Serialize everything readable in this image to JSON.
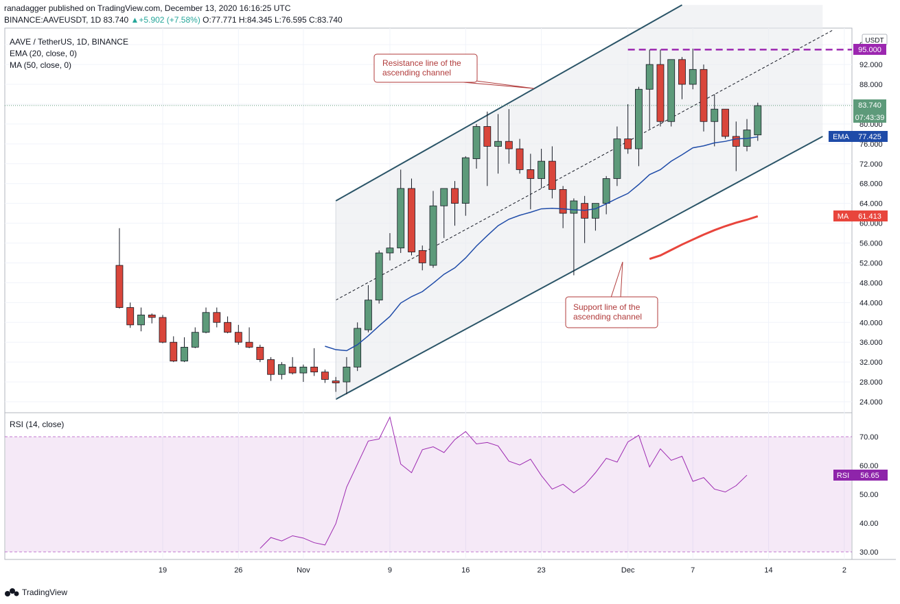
{
  "header": {
    "published": "ranadagger published on TradingView.com, December 13, 2020 16:16:25 UTC",
    "symbol": "BINANCE:AAVEUSDT, 1D",
    "last": "83.740",
    "change": "▲+5.902 (+7.58%)",
    "ohlc_o": "O:77.771",
    "ohlc_h": "H:84.345",
    "ohlc_l": "L:76.595",
    "ohlc_c": "C:83.740"
  },
  "legend": {
    "title": "AAVE / TetherUS, 1D, BINANCE",
    "ema": "EMA (20, close, 0)",
    "ma": "MA (50, close, 0)",
    "rsi": "RSI (14, close)"
  },
  "annotations": {
    "resistance_1": "Resistance line of the",
    "resistance_2": "ascending channel",
    "support_1": "Support line of the",
    "support_2": "ascending channel"
  },
  "badges": {
    "currency": "USDT",
    "target": "95.000",
    "last_price": "83.740",
    "countdown": "07:43:39",
    "ema_label": "EMA",
    "ema_value": "77.425",
    "ma_label": "MA",
    "ma_value": "61.413",
    "rsi_label": "RSI",
    "rsi_value": "56.65"
  },
  "footer": {
    "brand": "TradingView"
  },
  "colors": {
    "up": "#26a69a",
    "down": "#ef5350",
    "up_fill": "#5d9a7a",
    "down_fill": "#d9463b",
    "ema": "#1e4ba8",
    "ma": "#e8453c",
    "rsi": "#9c27b0",
    "target": "#9c27b0",
    "channel": "#2a5467"
  },
  "chart_data": [
    {
      "type": "candlestick",
      "title": "AAVE / TetherUS, 1D, BINANCE",
      "ylim": [
        22,
        100
      ],
      "yticks": [
        "24.000",
        "28.000",
        "32.000",
        "36.000",
        "40.000",
        "44.000",
        "48.000",
        "52.000",
        "56.000",
        "60.000",
        "64.000",
        "68.000",
        "72.000",
        "76.000",
        "80.000",
        "84.000",
        "88.000",
        "92.000",
        "96.000"
      ],
      "xticks": [
        {
          "day": 19,
          "label": "19"
        },
        {
          "day": 26,
          "label": "26"
        },
        {
          "day": 32,
          "label": "Nov"
        },
        {
          "day": 40,
          "label": "9"
        },
        {
          "day": 47,
          "label": "16"
        },
        {
          "day": 54,
          "label": "23"
        },
        {
          "day": 62,
          "label": "Dec"
        },
        {
          "day": 68,
          "label": "7"
        },
        {
          "day": 75,
          "label": "14"
        },
        {
          "day": 82,
          "label": "2"
        }
      ],
      "candles": [
        {
          "day": 15,
          "o": 51.5,
          "h": 59.0,
          "l": 42.8,
          "c": 43.0
        },
        {
          "day": 16,
          "o": 43.0,
          "h": 44.0,
          "l": 38.9,
          "c": 39.5
        },
        {
          "day": 17,
          "o": 39.5,
          "h": 43.0,
          "l": 38.2,
          "c": 41.5
        },
        {
          "day": 18,
          "o": 41.5,
          "h": 41.8,
          "l": 39.8,
          "c": 41.0
        },
        {
          "day": 19,
          "o": 41.0,
          "h": 41.5,
          "l": 35.8,
          "c": 36.0
        },
        {
          "day": 20,
          "o": 36.0,
          "h": 37.2,
          "l": 32.0,
          "c": 32.2
        },
        {
          "day": 21,
          "o": 32.2,
          "h": 37.0,
          "l": 32.0,
          "c": 35.0
        },
        {
          "day": 22,
          "o": 35.0,
          "h": 39.0,
          "l": 34.8,
          "c": 38.0
        },
        {
          "day": 23,
          "o": 38.0,
          "h": 43.0,
          "l": 37.8,
          "c": 42.0
        },
        {
          "day": 24,
          "o": 42.0,
          "h": 43.0,
          "l": 39.0,
          "c": 40.0
        },
        {
          "day": 25,
          "o": 40.0,
          "h": 41.2,
          "l": 37.8,
          "c": 38.0
        },
        {
          "day": 26,
          "o": 38.0,
          "h": 39.5,
          "l": 35.5,
          "c": 36.0
        },
        {
          "day": 27,
          "o": 36.0,
          "h": 39.0,
          "l": 34.8,
          "c": 35.0
        },
        {
          "day": 28,
          "o": 35.0,
          "h": 35.5,
          "l": 32.0,
          "c": 32.5
        },
        {
          "day": 29,
          "o": 32.5,
          "h": 33.0,
          "l": 28.2,
          "c": 29.5
        },
        {
          "day": 30,
          "o": 29.5,
          "h": 32.0,
          "l": 28.5,
          "c": 31.5
        },
        {
          "day": 31,
          "o": 31.0,
          "h": 33.0,
          "l": 29.5,
          "c": 29.8
        },
        {
          "day": 32,
          "o": 29.8,
          "h": 31.5,
          "l": 28.0,
          "c": 31.0
        },
        {
          "day": 33,
          "o": 31.0,
          "h": 34.8,
          "l": 29.2,
          "c": 30.0
        },
        {
          "day": 34,
          "o": 30.0,
          "h": 30.5,
          "l": 27.8,
          "c": 28.5
        },
        {
          "day": 35,
          "o": 28.2,
          "h": 29.0,
          "l": 26.0,
          "c": 27.8
        },
        {
          "day": 36,
          "o": 28.0,
          "h": 33.0,
          "l": 25.5,
          "c": 31.0
        },
        {
          "day": 37,
          "o": 31.0,
          "h": 40.0,
          "l": 30.2,
          "c": 38.8
        },
        {
          "day": 38,
          "o": 38.5,
          "h": 47.5,
          "l": 38.0,
          "c": 44.5
        },
        {
          "day": 39,
          "o": 44.5,
          "h": 54.5,
          "l": 43.8,
          "c": 54.0
        },
        {
          "day": 40,
          "o": 54.0,
          "h": 58.0,
          "l": 52.5,
          "c": 55.0
        },
        {
          "day": 41,
          "o": 55.0,
          "h": 70.8,
          "l": 54.0,
          "c": 67.0
        },
        {
          "day": 42,
          "o": 67.0,
          "h": 69.0,
          "l": 53.5,
          "c": 54.2
        },
        {
          "day": 43,
          "o": 54.5,
          "h": 55.5,
          "l": 50.5,
          "c": 52.0
        },
        {
          "day": 44,
          "o": 51.5,
          "h": 66.5,
          "l": 51.0,
          "c": 63.5
        },
        {
          "day": 45,
          "o": 63.5,
          "h": 67.0,
          "l": 57.0,
          "c": 67.0
        },
        {
          "day": 46,
          "o": 67.0,
          "h": 68.5,
          "l": 59.5,
          "c": 64.0
        },
        {
          "day": 47,
          "o": 64.0,
          "h": 73.5,
          "l": 61.5,
          "c": 73.2
        },
        {
          "day": 48,
          "o": 73.0,
          "h": 80.0,
          "l": 71.0,
          "c": 79.5
        },
        {
          "day": 49,
          "o": 79.5,
          "h": 82.5,
          "l": 67.5,
          "c": 75.5
        },
        {
          "day": 50,
          "o": 75.5,
          "h": 82.0,
          "l": 70.0,
          "c": 76.5
        },
        {
          "day": 51,
          "o": 76.5,
          "h": 83.0,
          "l": 72.0,
          "c": 75.0
        },
        {
          "day": 52,
          "o": 75.0,
          "h": 77.0,
          "l": 70.0,
          "c": 70.8
        },
        {
          "day": 53,
          "o": 70.8,
          "h": 74.0,
          "l": 62.8,
          "c": 69.0
        },
        {
          "day": 54,
          "o": 69.0,
          "h": 75.0,
          "l": 67.0,
          "c": 72.5
        },
        {
          "day": 55,
          "o": 72.5,
          "h": 75.5,
          "l": 65.0,
          "c": 66.8
        },
        {
          "day": 56,
          "o": 66.8,
          "h": 67.5,
          "l": 59.0,
          "c": 62.0
        },
        {
          "day": 57,
          "o": 62.0,
          "h": 65.0,
          "l": 49.5,
          "c": 64.5
        },
        {
          "day": 58,
          "o": 64.0,
          "h": 65.5,
          "l": 56.0,
          "c": 61.0
        },
        {
          "day": 59,
          "o": 61.0,
          "h": 64.0,
          "l": 58.5,
          "c": 64.0
        },
        {
          "day": 60,
          "o": 64.0,
          "h": 69.5,
          "l": 61.8,
          "c": 69.0
        },
        {
          "day": 61,
          "o": 69.0,
          "h": 79.5,
          "l": 67.5,
          "c": 77.0
        },
        {
          "day": 62,
          "o": 77.0,
          "h": 84.0,
          "l": 74.0,
          "c": 75.0
        },
        {
          "day": 63,
          "o": 75.0,
          "h": 87.5,
          "l": 71.5,
          "c": 87.0
        },
        {
          "day": 64,
          "o": 87.0,
          "h": 95.0,
          "l": 79.0,
          "c": 92.0
        },
        {
          "day": 65,
          "o": 92.0,
          "h": 95.0,
          "l": 79.5,
          "c": 80.5
        },
        {
          "day": 66,
          "o": 80.5,
          "h": 93.0,
          "l": 79.5,
          "c": 93.0
        },
        {
          "day": 67,
          "o": 93.0,
          "h": 93.5,
          "l": 85.0,
          "c": 88.0
        },
        {
          "day": 68,
          "o": 88.0,
          "h": 95.2,
          "l": 87.0,
          "c": 91.0
        },
        {
          "day": 69,
          "o": 91.0,
          "h": 92.0,
          "l": 78.5,
          "c": 80.5
        },
        {
          "day": 70,
          "o": 80.5,
          "h": 86.0,
          "l": 75.5,
          "c": 83.0
        },
        {
          "day": 71,
          "o": 83.0,
          "h": 83.0,
          "l": 77.0,
          "c": 77.5
        },
        {
          "day": 72,
          "o": 77.5,
          "h": 80.5,
          "l": 70.5,
          "c": 75.5
        },
        {
          "day": 73,
          "o": 75.5,
          "h": 81.0,
          "l": 74.5,
          "c": 78.8
        },
        {
          "day": 74,
          "o": 77.8,
          "h": 84.3,
          "l": 76.6,
          "c": 83.7
        }
      ],
      "ema20": [
        [
          34,
          35.2
        ],
        [
          35,
          34.5
        ],
        [
          36,
          34.3
        ],
        [
          37,
          35.5
        ],
        [
          38,
          37.3
        ],
        [
          39,
          39.3
        ],
        [
          40,
          41.2
        ],
        [
          41,
          43.9
        ],
        [
          42,
          45.2
        ],
        [
          43,
          46.2
        ],
        [
          44,
          47.9
        ],
        [
          45,
          49.7
        ],
        [
          46,
          51.0
        ],
        [
          47,
          53.0
        ],
        [
          48,
          55.4
        ],
        [
          49,
          57.5
        ],
        [
          50,
          59.5
        ],
        [
          51,
          60.8
        ],
        [
          52,
          61.6
        ],
        [
          53,
          62.2
        ],
        [
          54,
          62.9
        ],
        [
          55,
          63.0
        ],
        [
          56,
          62.9
        ],
        [
          57,
          62.7
        ],
        [
          58,
          62.6
        ],
        [
          59,
          62.9
        ],
        [
          60,
          63.9
        ],
        [
          61,
          65.0
        ],
        [
          62,
          66.0
        ],
        [
          63,
          67.8
        ],
        [
          64,
          69.8
        ],
        [
          65,
          70.8
        ],
        [
          66,
          72.5
        ],
        [
          67,
          73.8
        ],
        [
          68,
          75.2
        ],
        [
          69,
          75.6
        ],
        [
          70,
          76.2
        ],
        [
          71,
          76.5
        ],
        [
          72,
          77.0
        ],
        [
          73,
          77.1
        ],
        [
          74,
          77.4
        ]
      ],
      "ma50": [
        [
          64,
          52.8
        ],
        [
          65,
          53.5
        ],
        [
          66,
          54.6
        ],
        [
          67,
          55.7
        ],
        [
          68,
          56.7
        ],
        [
          69,
          57.7
        ],
        [
          70,
          58.6
        ],
        [
          71,
          59.4
        ],
        [
          72,
          60.1
        ],
        [
          73,
          60.7
        ],
        [
          74,
          61.4
        ]
      ],
      "channel": {
        "upper": [
          [
            35,
            64.5
          ],
          [
            67,
            104.0
          ]
        ],
        "lower": [
          [
            35,
            24.5
          ],
          [
            80,
            77.5
          ]
        ],
        "mid": [
          [
            35,
            44.5
          ],
          [
            81,
            99.0
          ]
        ]
      },
      "target_line": 95.0,
      "last_price": 83.74
    },
    {
      "type": "line",
      "title": "RSI (14, close)",
      "ylim": [
        28,
        76
      ],
      "yticks": [
        "30.00",
        "40.00",
        "50.00",
        "60.00",
        "70.00"
      ],
      "band": [
        30,
        70
      ],
      "values": [
        [
          28,
          31.2
        ],
        [
          29,
          35.0
        ],
        [
          30,
          33.8
        ],
        [
          31,
          35.6
        ],
        [
          32,
          34.8
        ],
        [
          33,
          33.2
        ],
        [
          34,
          32.4
        ],
        [
          35,
          39.8
        ],
        [
          36,
          52.5
        ],
        [
          37,
          60.5
        ],
        [
          38,
          68.5
        ],
        [
          39,
          69.2
        ],
        [
          40,
          76.8
        ],
        [
          41,
          60.5
        ],
        [
          42,
          57.5
        ],
        [
          43,
          65.5
        ],
        [
          44,
          66.5
        ],
        [
          45,
          64.5
        ],
        [
          46,
          69.0
        ],
        [
          47,
          71.8
        ],
        [
          48,
          67.5
        ],
        [
          49,
          68.0
        ],
        [
          50,
          66.8
        ],
        [
          51,
          61.5
        ],
        [
          52,
          60.2
        ],
        [
          53,
          62.2
        ],
        [
          54,
          56.5
        ],
        [
          55,
          51.8
        ],
        [
          56,
          53.5
        ],
        [
          57,
          50.5
        ],
        [
          58,
          53.2
        ],
        [
          59,
          57.5
        ],
        [
          60,
          62.5
        ],
        [
          61,
          61.2
        ],
        [
          62,
          68.2
        ],
        [
          63,
          70.5
        ],
        [
          64,
          59.5
        ],
        [
          65,
          65.8
        ],
        [
          66,
          61.8
        ],
        [
          67,
          63.2
        ],
        [
          68,
          54.5
        ],
        [
          69,
          55.8
        ],
        [
          70,
          51.8
        ],
        [
          71,
          50.8
        ],
        [
          72,
          53.0
        ],
        [
          73,
          56.65
        ]
      ]
    }
  ]
}
